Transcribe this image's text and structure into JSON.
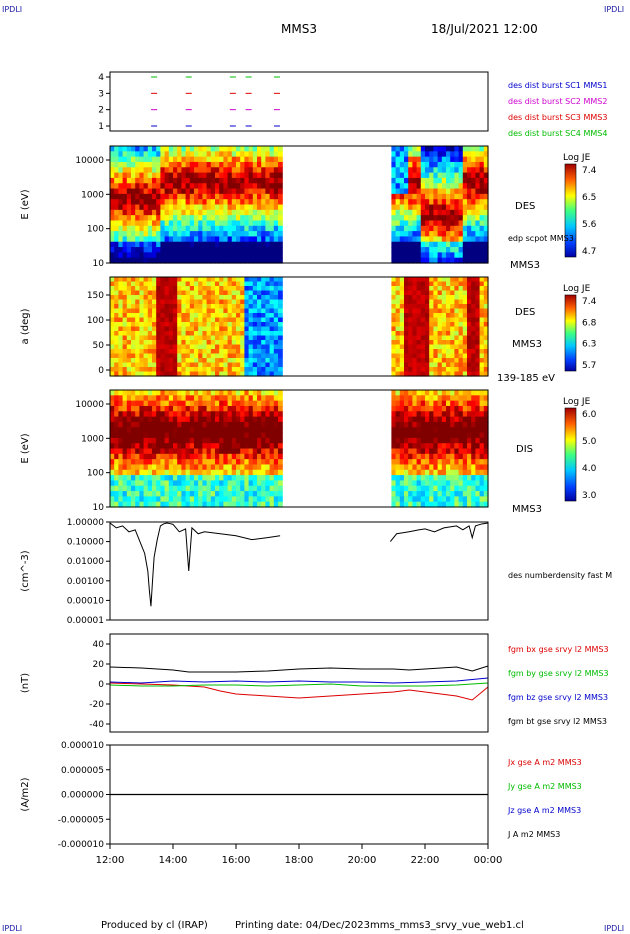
{
  "header": {
    "corner_label": "IPDLI",
    "spacecraft": "MMS3",
    "date_time": "18/Jul/2021 12:00"
  },
  "footer": {
    "produced_by": "Produced by cl (IRAP)",
    "printing_date": "Printing date: 04/Dec/2023",
    "script_name": "mms_mms3_srvy_vue_web1.cl"
  },
  "colors": {
    "sc1": "#0000cc",
    "sc2": "#cc00cc",
    "sc3": "#dd0000",
    "sc4": "#00bb00",
    "bx": "#dd0000",
    "by": "#00bb00",
    "bz": "#0000cc",
    "bt": "#000000"
  },
  "time_axis": {
    "ticks": [
      "12:00",
      "14:00",
      "16:00",
      "18:00",
      "20:00",
      "22:00",
      "00:00"
    ],
    "start_hours": 12,
    "end_hours": 24
  },
  "chart_data": [
    {
      "type": "scatter",
      "name": "burst availability",
      "yticks": [
        "4",
        "3",
        "2",
        "1"
      ],
      "legend": [
        "des dist burst SC1 MMS1",
        "des dist burst SC2 MMS2",
        "des dist burst SC3 MMS3",
        "des dist burst SC4 MMS4"
      ],
      "burst_hours": [
        13.4,
        14.5,
        15.9,
        16.4,
        17.3
      ]
    },
    {
      "type": "heatmap",
      "ylabel": "E (eV)",
      "yticks": [
        "10000",
        "1000",
        "100",
        "10"
      ],
      "side_labels": [
        "DES",
        "edp scpot MMS3",
        "MMS3"
      ],
      "colorbar": {
        "title": "Log JE",
        "ticks": [
          "7.4",
          "6.5",
          "5.6",
          "4.7"
        ]
      },
      "data_gap": [
        17.5,
        20.9
      ]
    },
    {
      "type": "heatmap",
      "ylabel": "a (deg)",
      "yticks": [
        "150",
        "100",
        "50",
        "0"
      ],
      "side_labels": [
        "DES",
        "MMS3",
        "139-185 eV"
      ],
      "colorbar": {
        "title": "Log JE",
        "ticks": [
          "7.4",
          "6.8",
          "6.3",
          "5.7"
        ]
      },
      "data_gap": [
        17.5,
        20.9
      ]
    },
    {
      "type": "heatmap",
      "ylabel": "E (eV)",
      "yticks": [
        "10000",
        "1000",
        "100",
        "10"
      ],
      "side_labels": [
        "DIS",
        "MMS3"
      ],
      "colorbar": {
        "title": "Log JE",
        "ticks": [
          "6.0",
          "5.0",
          "4.0",
          "3.0"
        ]
      },
      "data_gap": [
        17.5,
        20.9
      ]
    },
    {
      "type": "line",
      "ylabel": "(cm^-3)",
      "yticks": [
        "1.00000",
        "0.10000",
        "0.01000",
        "0.00100",
        "0.00010",
        "0.00001"
      ],
      "legend": [
        "des numberdensity fast M"
      ],
      "ylim_log10": [
        -5,
        0
      ],
      "series": [
        {
          "x": [
            12.0,
            12.2,
            12.4,
            12.6,
            12.8,
            13.0,
            13.1,
            13.2,
            13.25,
            13.3,
            13.35,
            13.4,
            13.5,
            13.6,
            13.7,
            13.8,
            13.9,
            14.0,
            14.2,
            14.4,
            14.5,
            14.6,
            14.8,
            15.0,
            15.5,
            16.0,
            16.5,
            17.0,
            17.4,
            20.9,
            21.1,
            21.3,
            21.5,
            21.8,
            22.0,
            22.3,
            22.6,
            23.0,
            23.2,
            23.4,
            23.5,
            23.6,
            23.8,
            24.0
          ],
          "log10": [
            -0.05,
            -0.3,
            -0.2,
            -0.5,
            -0.4,
            -1.2,
            -1.6,
            -2.5,
            -3.5,
            -4.3,
            -3.0,
            -1.8,
            -0.9,
            -0.2,
            -0.1,
            -0.05,
            -0.08,
            -0.12,
            -0.5,
            -0.35,
            -2.5,
            -0.3,
            -0.6,
            -0.5,
            -0.6,
            -0.7,
            -0.9,
            -0.8,
            -0.7,
            -1.0,
            -0.6,
            -0.55,
            -0.5,
            -0.4,
            -0.35,
            -0.5,
            -0.3,
            -0.2,
            -0.4,
            -0.2,
            -0.8,
            -0.2,
            -0.1,
            -0.05
          ]
        }
      ]
    },
    {
      "type": "line",
      "ylabel": "(nT)",
      "yticks": [
        "40",
        "20",
        "0",
        "-20",
        "-40"
      ],
      "ylim": [
        -50,
        50
      ],
      "legend": [
        "fgm bx gse srvy l2 MMS3",
        "fgm by gse srvy l2 MMS3",
        "fgm bz gse srvy l2 MMS3",
        "fgm bt gse srvy l2 MMS3"
      ],
      "series": [
        {
          "name": "bx",
          "x": [
            12,
            13,
            14,
            15,
            15.5,
            16,
            17,
            18,
            19,
            20,
            21,
            21.5,
            22,
            23,
            23.5,
            24
          ],
          "values": [
            1,
            0,
            -1,
            -3,
            -7,
            -10,
            -12,
            -14,
            -12,
            -10,
            -8,
            -6,
            -8,
            -12,
            -16,
            -3
          ]
        },
        {
          "name": "by",
          "x": [
            12,
            13,
            14,
            15,
            16,
            17,
            18,
            19,
            20,
            21,
            22,
            23,
            24
          ],
          "values": [
            -1,
            -2,
            -2,
            -1,
            -1,
            -2,
            -1,
            0,
            -2,
            -2,
            -2,
            -1,
            1
          ]
        },
        {
          "name": "bz",
          "x": [
            12,
            13,
            14,
            15,
            16,
            17,
            18,
            19,
            20,
            21,
            22,
            23,
            24
          ],
          "values": [
            2,
            1,
            3,
            2,
            3,
            2,
            3,
            2,
            2,
            1,
            2,
            3,
            6
          ]
        },
        {
          "name": "bt",
          "x": [
            12,
            13,
            14,
            14.5,
            15,
            16,
            17,
            18,
            19,
            20,
            21,
            21.5,
            22,
            23,
            23.5,
            24
          ],
          "values": [
            17,
            16,
            14,
            12,
            12,
            12,
            13,
            15,
            16,
            15,
            15,
            14,
            15,
            17,
            13,
            18
          ]
        }
      ]
    },
    {
      "type": "line",
      "ylabel": "(A/m2)",
      "yticks": [
        "0.000010",
        "0.000005",
        "0.000000",
        "-0.000005",
        "-0.000010"
      ],
      "ylim": [
        -1e-05,
        1e-05
      ],
      "legend": [
        "Jx gse A m2 MMS3",
        "Jy gse A m2 MMS3",
        "Jz gse A m2 MMS3",
        "J A m2 MMS3"
      ],
      "series": [
        {
          "name": "J",
          "x": [
            12,
            24
          ],
          "values": [
            0,
            0
          ]
        }
      ]
    }
  ]
}
